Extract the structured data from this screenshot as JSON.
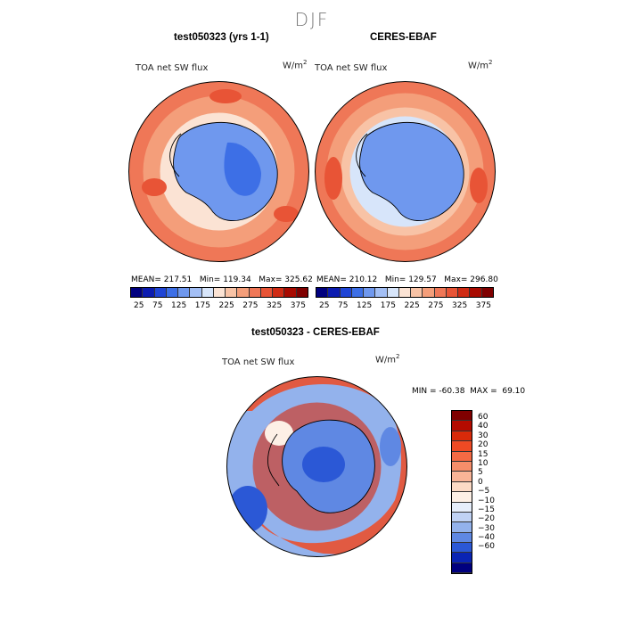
{
  "season": "DJF",
  "top_left": {
    "title": "test050323 (yrs 1-1)",
    "var_label": "TOA net SW flux",
    "units": "W/m",
    "units_sup": "2",
    "mean_label": "MEAN= 217.51",
    "min_label": "Min= 119.34",
    "max_label": "Max= 325.62"
  },
  "top_right": {
    "title": "CERES-EBAF",
    "var_label": "TOA net SW flux",
    "units": "W/m",
    "units_sup": "2",
    "mean_label": "MEAN= 210.12",
    "min_label": "Min= 129.57",
    "max_label": "Max= 296.80"
  },
  "bottom": {
    "title": "test050323 - CERES-EBAF",
    "var_label": "TOA net SW flux",
    "units": "W/m",
    "units_sup": "2",
    "minmax_label": "MIN = -60.38  MAX =  69.10"
  },
  "chart_data": [
    {
      "type": "heatmap",
      "title": "test050323 (yrs 1-1)",
      "subtitle": "TOA net SW flux",
      "units": "W/m2",
      "mean": 217.51,
      "min": 119.34,
      "max": 325.62,
      "colorbar_ticks": [
        25,
        75,
        125,
        175,
        225,
        275,
        325,
        375
      ],
      "colorbar_colors": [
        "#00007f",
        "#0b1bb0",
        "#1f45d6",
        "#3d6fe6",
        "#6f98ee",
        "#a3bff5",
        "#d7e5fa",
        "#fbe3d4",
        "#f8c3a6",
        "#f49e7a",
        "#ef7757",
        "#e85436",
        "#cf2b14",
        "#a80a00",
        "#7f0000"
      ]
    },
    {
      "type": "heatmap",
      "title": "CERES-EBAF",
      "subtitle": "TOA net SW flux",
      "units": "W/m2",
      "mean": 210.12,
      "min": 129.57,
      "max": 296.8,
      "colorbar_ticks": [
        25,
        75,
        125,
        175,
        225,
        275,
        325,
        375
      ],
      "colorbar_colors": [
        "#00007f",
        "#0b1bb0",
        "#1f45d6",
        "#3d6fe6",
        "#6f98ee",
        "#a3bff5",
        "#d7e5fa",
        "#fbe3d4",
        "#f8c3a6",
        "#f49e7a",
        "#ef7757",
        "#e85436",
        "#cf2b14",
        "#a80a00",
        "#7f0000"
      ]
    },
    {
      "type": "heatmap",
      "title": "test050323 - CERES-EBAF",
      "subtitle": "TOA net SW flux",
      "units": "W/m2",
      "min": -60.38,
      "max": 69.1,
      "colorbar_levels": [
        60,
        40,
        30,
        20,
        15,
        10,
        5,
        0,
        -5,
        -10,
        -15,
        -20,
        -30,
        -40,
        -60
      ],
      "colorbar_colors": [
        "#7f0000",
        "#b40b00",
        "#d82a0a",
        "#ee4a24",
        "#f46a44",
        "#f68e6a",
        "#f9b497",
        "#fcdac5",
        "#fdf0e6",
        "#e6eefb",
        "#c0d2f4",
        "#93b2ec",
        "#5f88e3",
        "#2b58d6",
        "#0a24b4",
        "#00007f"
      ]
    }
  ]
}
